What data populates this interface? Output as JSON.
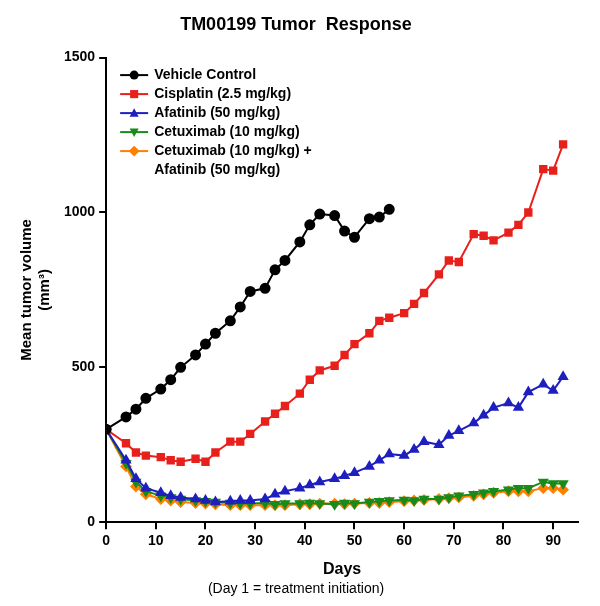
{
  "chart_data": {
    "type": "line",
    "title": "TM00199 Tumor  Response",
    "x_label": "Days",
    "subtitle": "(Day 1 = treatment initiation)",
    "y_label": [
      "Mean tumor volume",
      "(mm³)"
    ],
    "x": [
      0,
      4,
      6,
      8,
      11,
      13,
      15,
      18,
      20,
      22,
      25,
      27,
      29,
      32,
      34,
      36,
      39,
      41,
      43,
      46,
      48,
      50,
      53,
      55,
      57,
      60,
      62,
      64,
      67,
      69,
      71,
      74,
      76,
      78,
      81,
      83,
      85,
      88,
      90,
      92
    ],
    "xlim": [
      0,
      95
    ],
    "xticks": [
      0,
      10,
      20,
      30,
      40,
      50,
      60,
      70,
      80,
      90
    ],
    "ylim": [
      0,
      1500
    ],
    "yticks": [
      0,
      500,
      1000,
      1500
    ],
    "grid": false,
    "legend": "top-left",
    "series": [
      {
        "name": "Vehicle Control",
        "color": "#000000",
        "marker": "circle",
        "line_style": "solid",
        "values": [
          300,
          340,
          365,
          400,
          430,
          460,
          500,
          540,
          575,
          610,
          650,
          695,
          745,
          755,
          815,
          845,
          905,
          960,
          995,
          990,
          940,
          920,
          980,
          985,
          1010,
          null,
          null,
          null,
          null,
          null,
          null,
          null,
          null,
          null,
          null,
          null,
          null,
          null,
          null,
          null
        ]
      },
      {
        "name": "Cisplatin (2.5 mg/kg)",
        "color": "#e8201c",
        "marker": "square",
        "line_style": "solid",
        "values": [
          300,
          255,
          225,
          215,
          210,
          200,
          195,
          205,
          195,
          225,
          260,
          260,
          285,
          325,
          350,
          375,
          415,
          460,
          490,
          505,
          540,
          575,
          610,
          650,
          660,
          675,
          705,
          740,
          800,
          845,
          840,
          930,
          925,
          910,
          935,
          960,
          1000,
          1140,
          1135,
          1220
        ]
      },
      {
        "name": "Afatinib (50 mg/kg)",
        "color": "#1f1fbf",
        "marker": "triangle",
        "line_style": "solid",
        "values": [
          300,
          200,
          140,
          110,
          95,
          85,
          80,
          75,
          70,
          65,
          68,
          70,
          70,
          75,
          90,
          100,
          110,
          120,
          130,
          140,
          150,
          160,
          180,
          200,
          220,
          215,
          235,
          260,
          250,
          280,
          295,
          320,
          345,
          370,
          385,
          370,
          420,
          445,
          425,
          470
        ]
      },
      {
        "name": "Cetuximab (10 mg/kg)",
        "color": "#1a8a1a",
        "marker": "triangle-down",
        "line_style": "solid",
        "values": [
          300,
          190,
          130,
          100,
          85,
          80,
          75,
          70,
          68,
          65,
          62,
          60,
          60,
          62,
          58,
          60,
          60,
          62,
          60,
          58,
          62,
          60,
          65,
          68,
          70,
          72,
          70,
          75,
          75,
          80,
          85,
          90,
          95,
          100,
          105,
          110,
          110,
          130,
          125,
          125
        ]
      },
      {
        "name": "Cetuximab (10 mg/kg) + Afatinib (50 mg/kg)",
        "color": "#ff7f00",
        "marker": "diamond",
        "line_style": "solid",
        "values": [
          300,
          180,
          115,
          90,
          75,
          70,
          65,
          62,
          60,
          58,
          55,
          55,
          55,
          55,
          55,
          55,
          58,
          58,
          60,
          60,
          58,
          60,
          62,
          62,
          65,
          68,
          70,
          72,
          75,
          78,
          80,
          85,
          90,
          95,
          100,
          100,
          100,
          110,
          110,
          105
        ]
      }
    ]
  }
}
